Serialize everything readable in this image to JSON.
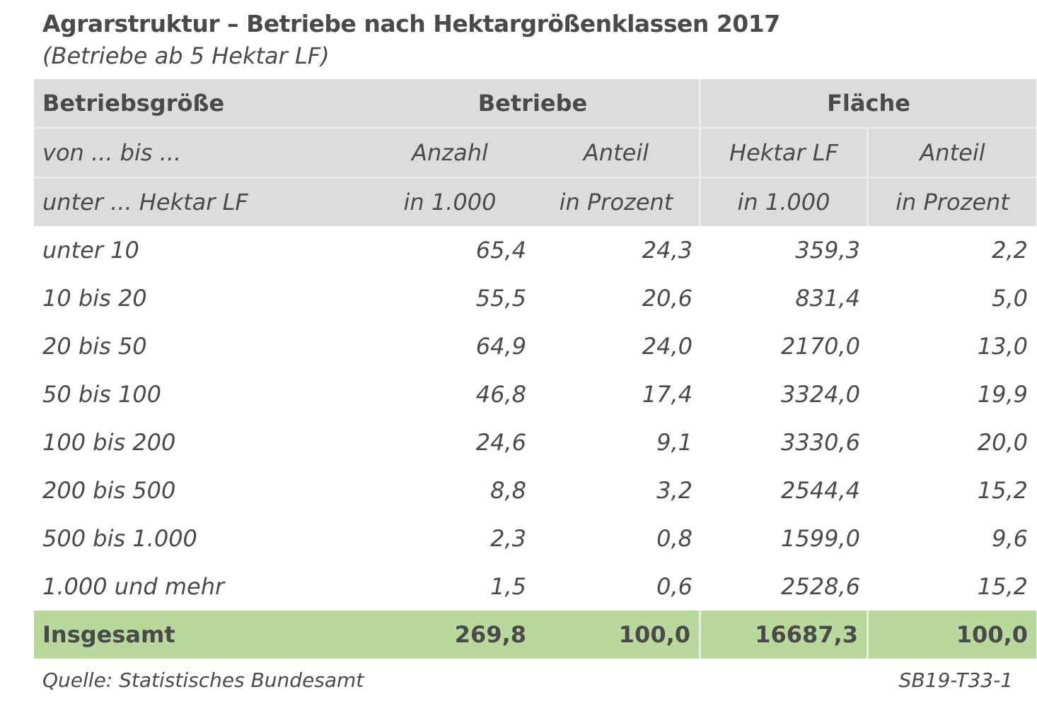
{
  "title": "Agrarstruktur –  Betriebe nach Hektargrößenklassen 2017",
  "subtitle": "(Betriebe ab 5 Hektar LF)",
  "header": {
    "row1": {
      "col0": "Betriebsgröße",
      "group1": "Betriebe",
      "group2": "Fläche"
    },
    "row2": [
      "von ... bis ...",
      "Anzahl",
      "Anteil",
      "Hektar LF",
      "Anteil"
    ],
    "row3": [
      "unter ... Hektar LF",
      "in 1.000",
      "in Prozent",
      "in 1.000",
      "in Prozent"
    ]
  },
  "rows": [
    [
      "unter 10",
      "65,4",
      "24,3",
      "359,3",
      "2,2"
    ],
    [
      "10 bis 20",
      "55,5",
      "20,6",
      "831,4",
      "5,0"
    ],
    [
      "20 bis 50",
      "64,9",
      "24,0",
      "2170,0",
      "13,0"
    ],
    [
      "50 bis 100",
      "46,8",
      "17,4",
      "3324,0",
      "19,9"
    ],
    [
      "100 bis 200",
      "24,6",
      "9,1",
      "3330,6",
      "20,0"
    ],
    [
      "200 bis 500",
      "8,8",
      "3,2",
      "2544,4",
      "15,2"
    ],
    [
      "500 bis 1.000",
      "2,3",
      "0,8",
      "1599,0",
      "9,6"
    ],
    [
      "1.000 und mehr",
      "1,5",
      "0,6",
      "2528,6",
      "15,2"
    ]
  ],
  "total": [
    "Insgesamt",
    "269,8",
    "100,0",
    "16687,3",
    "100,0"
  ],
  "footer": {
    "source": "Quelle: Statistisches Bundesamt",
    "code": "SB19-T33-1"
  },
  "colors": {
    "header_bg": "#dcdcdd",
    "total_bg": "#b8d89c",
    "text": "#4a4a4a"
  }
}
